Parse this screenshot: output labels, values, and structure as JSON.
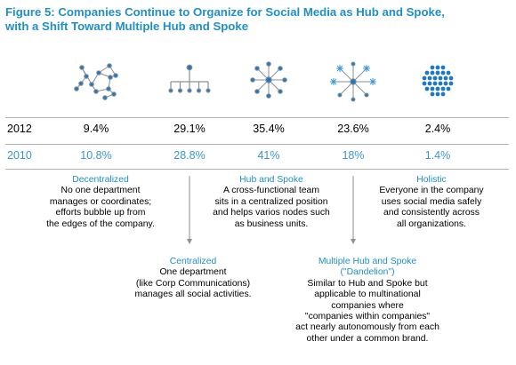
{
  "title_line1": "Figure 5: Companies Continue to Organize for Social Media as Hub and Spoke,",
  "title_line2": "with a Shift Toward Multiple Hub and Spoke",
  "colors": {
    "accent": "#1f8fc9",
    "icon_blue": "#1f78c1",
    "row_2010": "#3a96d0"
  },
  "icons": [
    "decentralized-network-icon",
    "centralized-tree-icon",
    "hub-and-spoke-icon",
    "multiple-hub-and-spoke-icon",
    "holistic-dot-cluster-icon"
  ],
  "chart_data": {
    "type": "table",
    "columns": [
      "Decentralized",
      "Centralized",
      "Hub and Spoke",
      "Multiple Hub and Spoke",
      "Holistic"
    ],
    "rows": [
      {
        "year": "2012",
        "values": [
          "9.4%",
          "29.1%",
          "35.4%",
          "23.6%",
          "2.4%"
        ]
      },
      {
        "year": "2010",
        "values": [
          "10.8%",
          "28.8%",
          "41%",
          "18%",
          "1.4%"
        ]
      }
    ]
  },
  "descriptions": {
    "decentralized": {
      "heading": "Decentralized",
      "lines": [
        "No one department",
        "manages or coordinates;",
        "efforts bubble up from",
        "the edges of the company."
      ]
    },
    "hub": {
      "heading": "Hub and Spoke",
      "lines": [
        "A cross-functional team",
        "sits in a centralized position",
        "and helps varios nodes such",
        "as business units."
      ]
    },
    "holistic": {
      "heading": "Holistic",
      "lines": [
        "Everyone in the company",
        "uses social media safely",
        "and consistently across",
        "all organizations."
      ]
    },
    "centralized": {
      "heading": "Centralized",
      "lines": [
        "One department",
        "(like Corp Communications)",
        "manages all social activities."
      ]
    },
    "multiple": {
      "heading": "Multiple Hub and Spoke",
      "heading2": "(\"Dandelion\")",
      "lines": [
        "Similar to Hub and Spoke but",
        "applicable to multinational",
        "companies where",
        "\"companies within companies\"",
        "act nearly autonomously from each",
        "other under a common brand."
      ]
    }
  }
}
